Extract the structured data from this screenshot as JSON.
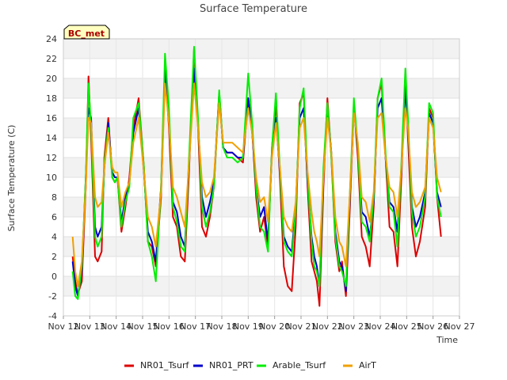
{
  "chart_data": {
    "type": "line",
    "title": "Surface Temperature",
    "xlabel": "Time",
    "ylabel": "Surface Temperature (C)",
    "badge": "BC_met",
    "ylim": [
      -4,
      24
    ],
    "yticks": [
      -4,
      -2,
      0,
      2,
      4,
      6,
      8,
      10,
      12,
      14,
      16,
      18,
      20,
      22,
      24
    ],
    "xlim": [
      12,
      27
    ],
    "xticks": [
      {
        "x": 12,
        "label": "Nov 12"
      },
      {
        "x": 13,
        "label": "Nov 13"
      },
      {
        "x": 14,
        "label": "Nov 14"
      },
      {
        "x": 15,
        "label": "Nov 15"
      },
      {
        "x": 16,
        "label": "Nov 16"
      },
      {
        "x": 17,
        "label": "Nov 17"
      },
      {
        "x": 18,
        "label": "Nov 18"
      },
      {
        "x": 19,
        "label": "Nov 19"
      },
      {
        "x": 20,
        "label": "Nov 20"
      },
      {
        "x": 21,
        "label": "Nov 21"
      },
      {
        "x": 22,
        "label": "Nov 22"
      },
      {
        "x": 23,
        "label": "Nov 23"
      },
      {
        "x": 24,
        "label": "Nov 24"
      },
      {
        "x": 25,
        "label": "Nov 25"
      },
      {
        "x": 26,
        "label": "Nov 26"
      },
      {
        "x": 27,
        "label": "Nov 27"
      }
    ],
    "grid": true,
    "legend_position": "bottom",
    "series": [
      {
        "name": "NR01_Tsurf",
        "color": "#dd0000",
        "x": [
          12.35,
          12.45,
          12.55,
          12.7,
          12.85,
          12.95,
          13.05,
          13.2,
          13.3,
          13.45,
          13.55,
          13.7,
          13.85,
          13.95,
          14.05,
          14.2,
          14.35,
          14.5,
          14.65,
          14.85,
          15.05,
          15.2,
          15.35,
          15.5,
          15.7,
          15.85,
          16.0,
          16.15,
          16.3,
          16.45,
          16.6,
          16.75,
          16.95,
          17.1,
          17.25,
          17.4,
          17.55,
          17.7,
          17.9,
          18.05,
          18.2,
          18.4,
          18.6,
          18.8,
          19.0,
          19.15,
          19.3,
          19.45,
          19.6,
          19.75,
          19.9,
          20.05,
          20.2,
          20.35,
          20.5,
          20.65,
          20.8,
          20.95,
          21.1,
          21.25,
          21.4,
          21.5,
          21.6,
          21.7,
          21.85,
          22.0,
          22.15,
          22.3,
          22.45,
          22.55,
          22.7,
          22.85,
          23.0,
          23.15,
          23.3,
          23.45,
          23.6,
          23.75,
          23.9,
          24.05,
          24.2,
          24.35,
          24.5,
          24.65,
          24.8,
          24.95,
          25.05,
          25.2,
          25.35,
          25.5,
          25.7,
          25.85,
          26.0,
          26.15,
          26.3
        ],
        "y": [
          2.0,
          -0.5,
          -1.8,
          -0.5,
          9.0,
          20.2,
          14.0,
          2.0,
          1.5,
          2.5,
          12.0,
          16.0,
          10.0,
          9.5,
          10.0,
          4.5,
          7.0,
          10.0,
          15.0,
          18.0,
          11.0,
          3.5,
          3.0,
          1.0,
          8.0,
          21.0,
          15.0,
          6.0,
          5.0,
          2.0,
          1.5,
          10.0,
          23.0,
          15.0,
          5.0,
          4.0,
          6.0,
          9.0,
          18.5,
          13.0,
          12.5,
          12.5,
          12.0,
          11.5,
          18.0,
          15.0,
          8.0,
          4.5,
          6.0,
          3.0,
          13.0,
          17.5,
          10.0,
          1.0,
          -1.0,
          -1.5,
          5.0,
          17.5,
          18.5,
          9.0,
          1.5,
          0.5,
          -0.5,
          -3.0,
          9.0,
          18.0,
          12.0,
          3.5,
          0.5,
          1.5,
          -2.0,
          7.0,
          17.5,
          12.0,
          4.0,
          3.0,
          1.0,
          7.0,
          18.0,
          19.5,
          12.0,
          5.0,
          4.5,
          1.0,
          10.0,
          20.5,
          14.0,
          5.0,
          2.0,
          3.5,
          7.0,
          17.0,
          16.0,
          8.0,
          4.0
        ]
      },
      {
        "name": "NR01_PRT",
        "color": "#0000cc",
        "x": [
          12.35,
          12.45,
          12.55,
          12.7,
          12.85,
          12.95,
          13.05,
          13.2,
          13.3,
          13.45,
          13.55,
          13.7,
          13.85,
          13.95,
          14.05,
          14.2,
          14.35,
          14.5,
          14.65,
          14.85,
          15.05,
          15.2,
          15.35,
          15.5,
          15.7,
          15.85,
          16.0,
          16.15,
          16.3,
          16.45,
          16.6,
          16.75,
          16.95,
          17.1,
          17.25,
          17.4,
          17.55,
          17.7,
          17.9,
          18.05,
          18.2,
          18.4,
          18.6,
          18.8,
          19.0,
          19.15,
          19.3,
          19.45,
          19.6,
          19.75,
          19.9,
          20.05,
          20.2,
          20.35,
          20.5,
          20.65,
          20.8,
          20.95,
          21.1,
          21.25,
          21.4,
          21.5,
          21.6,
          21.7,
          21.85,
          22.0,
          22.15,
          22.3,
          22.45,
          22.55,
          22.7,
          22.85,
          23.0,
          23.15,
          23.3,
          23.45,
          23.6,
          23.75,
          23.9,
          24.05,
          24.2,
          24.35,
          24.5,
          24.65,
          24.8,
          24.95,
          25.05,
          25.2,
          25.35,
          25.5,
          25.7,
          25.85,
          26.0,
          26.15,
          26.3
        ],
        "y": [
          1.5,
          -1.0,
          -2.0,
          0.5,
          10.0,
          17.0,
          16.0,
          5.0,
          4.0,
          5.0,
          11.0,
          15.5,
          10.5,
          10.0,
          10.0,
          5.5,
          8.0,
          9.5,
          14.5,
          17.0,
          10.5,
          4.5,
          3.5,
          1.5,
          9.0,
          21.0,
          16.0,
          7.5,
          6.5,
          4.0,
          3.0,
          11.0,
          21.0,
          15.5,
          8.0,
          6.0,
          7.5,
          9.5,
          18.5,
          13.0,
          12.5,
          12.5,
          12.0,
          12.0,
          18.0,
          14.5,
          9.0,
          6.0,
          7.0,
          3.5,
          12.5,
          16.0,
          10.5,
          4.0,
          3.0,
          2.5,
          7.0,
          16.0,
          17.0,
          9.5,
          4.0,
          2.0,
          1.0,
          -1.0,
          10.0,
          17.0,
          12.5,
          4.5,
          1.5,
          1.0,
          -1.5,
          8.0,
          17.0,
          13.0,
          6.5,
          6.0,
          4.0,
          7.5,
          17.0,
          18.0,
          12.0,
          7.5,
          7.0,
          4.5,
          11.0,
          19.0,
          15.0,
          7.0,
          5.0,
          6.0,
          8.5,
          16.5,
          15.5,
          8.5,
          7.0
        ]
      },
      {
        "name": "Arable_Tsurf",
        "color": "#00ee00",
        "x": [
          12.35,
          12.45,
          12.55,
          12.7,
          12.85,
          12.95,
          13.05,
          13.2,
          13.3,
          13.45,
          13.55,
          13.7,
          13.85,
          13.95,
          14.05,
          14.2,
          14.35,
          14.5,
          14.65,
          14.85,
          15.05,
          15.2,
          15.35,
          15.5,
          15.7,
          15.85,
          16.0,
          16.15,
          16.3,
          16.45,
          16.6,
          16.75,
          16.95,
          17.1,
          17.25,
          17.4,
          17.55,
          17.7,
          17.9,
          18.05,
          18.2,
          18.4,
          18.6,
          18.8,
          19.0,
          19.15,
          19.3,
          19.45,
          19.6,
          19.75,
          19.9,
          20.05,
          20.2,
          20.35,
          20.5,
          20.65,
          20.8,
          20.95,
          21.1,
          21.25,
          21.4,
          21.5,
          21.6,
          21.7,
          21.85,
          22.0,
          22.15,
          22.3,
          22.45,
          22.55,
          22.7,
          22.85,
          23.0,
          23.15,
          23.3,
          23.45,
          23.6,
          23.75,
          23.9,
          24.05,
          24.2,
          24.35,
          24.5,
          24.65,
          24.8,
          24.95,
          25.05,
          25.2,
          25.35,
          25.5,
          25.7,
          25.85,
          26.0,
          26.15,
          26.3
        ],
        "y": [
          0.5,
          -2.0,
          -2.3,
          1.0,
          10.0,
          19.5,
          15.0,
          4.0,
          3.0,
          4.0,
          11.5,
          15.0,
          10.0,
          9.5,
          10.0,
          5.0,
          7.5,
          9.0,
          16.0,
          17.5,
          11.0,
          3.5,
          2.0,
          -0.5,
          9.0,
          22.5,
          17.0,
          7.0,
          5.5,
          3.0,
          2.5,
          11.5,
          23.2,
          16.0,
          7.0,
          5.0,
          6.5,
          9.0,
          18.8,
          13.0,
          12.0,
          12.0,
          11.5,
          12.0,
          20.5,
          15.5,
          9.0,
          5.0,
          4.5,
          2.5,
          13.0,
          18.5,
          11.0,
          3.5,
          2.5,
          2.0,
          6.5,
          17.0,
          19.0,
          10.0,
          3.5,
          1.0,
          0.5,
          -1.0,
          11.0,
          17.5,
          12.0,
          4.0,
          1.0,
          0.5,
          -1.0,
          8.5,
          18.0,
          13.0,
          5.5,
          5.0,
          3.5,
          8.0,
          18.0,
          20.0,
          12.5,
          7.0,
          6.5,
          3.0,
          11.5,
          21.0,
          16.0,
          6.5,
          4.0,
          5.0,
          8.0,
          17.5,
          16.5,
          8.0,
          6.0
        ]
      },
      {
        "name": "AirT",
        "color": "#f0a000",
        "x": [
          12.35,
          12.45,
          12.55,
          12.7,
          12.85,
          12.95,
          13.05,
          13.2,
          13.3,
          13.45,
          13.55,
          13.7,
          13.85,
          13.95,
          14.05,
          14.2,
          14.35,
          14.5,
          14.65,
          14.85,
          15.05,
          15.2,
          15.35,
          15.5,
          15.7,
          15.85,
          16.0,
          16.15,
          16.3,
          16.45,
          16.6,
          16.75,
          16.95,
          17.1,
          17.25,
          17.4,
          17.55,
          17.7,
          17.9,
          18.05,
          18.2,
          18.4,
          18.6,
          18.8,
          19.0,
          19.15,
          19.3,
          19.45,
          19.6,
          19.75,
          19.9,
          20.05,
          20.2,
          20.35,
          20.5,
          20.65,
          20.8,
          20.95,
          21.1,
          21.25,
          21.4,
          21.5,
          21.6,
          21.7,
          21.85,
          22.0,
          22.15,
          22.3,
          22.45,
          22.55,
          22.7,
          22.85,
          23.0,
          23.15,
          23.3,
          23.45,
          23.6,
          23.75,
          23.9,
          24.05,
          24.2,
          24.35,
          24.5,
          24.65,
          24.8,
          24.95,
          25.05,
          25.2,
          25.35,
          25.5,
          25.7,
          25.85,
          26.0,
          26.15,
          26.3
        ],
        "y": [
          4.0,
          0.5,
          -1.0,
          1.5,
          9.0,
          16.0,
          15.5,
          8.0,
          7.0,
          7.5,
          11.0,
          14.5,
          11.0,
          10.5,
          10.5,
          7.0,
          8.5,
          9.5,
          13.5,
          16.0,
          10.5,
          6.0,
          5.0,
          3.0,
          8.5,
          19.5,
          15.5,
          9.0,
          8.0,
          6.5,
          5.0,
          11.0,
          19.5,
          15.0,
          9.5,
          8.0,
          8.5,
          10.0,
          17.5,
          13.5,
          13.5,
          13.5,
          13.0,
          12.5,
          17.0,
          14.5,
          10.0,
          7.5,
          8.0,
          5.5,
          12.0,
          15.5,
          11.0,
          6.0,
          5.0,
          4.5,
          7.5,
          15.0,
          16.0,
          10.5,
          6.5,
          4.5,
          3.5,
          2.0,
          10.0,
          16.0,
          12.5,
          6.0,
          3.5,
          3.0,
          1.0,
          8.5,
          16.5,
          13.5,
          8.0,
          7.5,
          5.5,
          8.5,
          16.0,
          16.5,
          12.0,
          9.0,
          8.5,
          6.0,
          11.0,
          17.0,
          15.0,
          8.5,
          7.0,
          7.5,
          9.0,
          16.0,
          15.0,
          10.0,
          8.5
        ]
      }
    ]
  }
}
